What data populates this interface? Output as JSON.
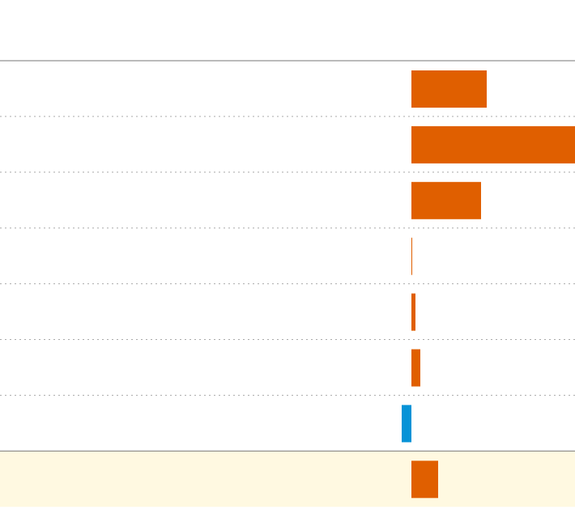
{
  "chart_data": {
    "type": "bar",
    "orientation": "horizontal",
    "values": [
      93,
      202,
      86,
      1,
      5,
      11,
      -12,
      33
    ],
    "color": "#e05f00",
    "negative_color": "#0793d7",
    "xlim": [
      -508,
      202
    ],
    "highlight_last_row": "#fff9e1"
  }
}
